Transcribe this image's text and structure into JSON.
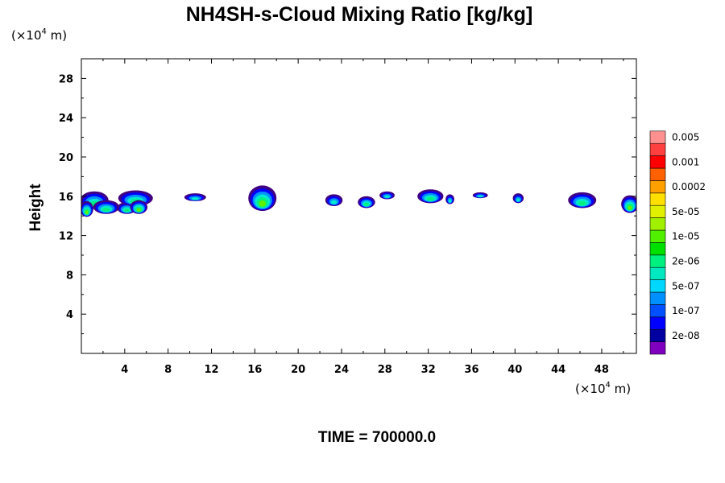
{
  "chart_data": {
    "type": "heatmap",
    "title": "NH4SH-s-Cloud Mixing Ratio [kg/kg]",
    "ylabel": "Height",
    "xunit": {
      "pre": "(×10",
      "exp": "4",
      "post": " m)"
    },
    "yunit": {
      "pre": "(×10",
      "exp": "4",
      "post": " m)"
    },
    "time_label": "TIME = 700000.0",
    "xlim": [
      0,
      51.2
    ],
    "ylim": [
      0,
      30
    ],
    "xticks": [
      4,
      8,
      12,
      16,
      20,
      24,
      28,
      32,
      36,
      40,
      44,
      48
    ],
    "yticks": [
      4,
      8,
      12,
      16,
      20,
      24,
      28
    ],
    "colorbar": {
      "colors": [
        "#7f00bf",
        "#0000a0",
        "#0000ff",
        "#0050ff",
        "#0090ff",
        "#00d8ff",
        "#00e8c0",
        "#00f080",
        "#00e000",
        "#50f000",
        "#a0f000",
        "#e0f000",
        "#ffe000",
        "#ffa000",
        "#ff6000",
        "#ff0000",
        "#ff4040",
        "#ff9090"
      ],
      "labels": [
        {
          "text": "2e-08",
          "index": 1
        },
        {
          "text": "1e-07",
          "index": 3
        },
        {
          "text": "5e-07",
          "index": 5
        },
        {
          "text": "2e-06",
          "index": 7
        },
        {
          "text": "1e-05",
          "index": 9
        },
        {
          "text": "5e-05",
          "index": 11
        },
        {
          "text": "0.0002",
          "index": 13
        },
        {
          "text": "0.001",
          "index": 15
        },
        {
          "text": "0.005",
          "index": 17
        }
      ]
    },
    "clouds": [
      {
        "x": 1.2,
        "y": 15.6,
        "rx": 1.3,
        "ry": 0.9,
        "level": 1
      },
      {
        "x": 0.5,
        "y": 14.7,
        "rx": 0.6,
        "ry": 0.8,
        "level": 2
      },
      {
        "x": 2.3,
        "y": 14.9,
        "rx": 1.2,
        "ry": 0.7,
        "level": 1
      },
      {
        "x": 4.2,
        "y": 14.8,
        "rx": 0.9,
        "ry": 0.6,
        "level": 1
      },
      {
        "x": 5.0,
        "y": 15.8,
        "rx": 1.6,
        "ry": 0.8,
        "level": 1
      },
      {
        "x": 5.3,
        "y": 14.9,
        "rx": 0.8,
        "ry": 0.7,
        "level": 2
      },
      {
        "x": 10.5,
        "y": 15.9,
        "rx": 1.0,
        "ry": 0.4,
        "level": 0
      },
      {
        "x": 16.7,
        "y": 15.8,
        "rx": 1.3,
        "ry": 1.3,
        "level": 2
      },
      {
        "x": 23.3,
        "y": 15.6,
        "rx": 0.8,
        "ry": 0.6,
        "level": 0
      },
      {
        "x": 26.3,
        "y": 15.4,
        "rx": 0.8,
        "ry": 0.6,
        "level": 1
      },
      {
        "x": 28.2,
        "y": 16.1,
        "rx": 0.7,
        "ry": 0.4,
        "level": 0
      },
      {
        "x": 32.2,
        "y": 16.0,
        "rx": 1.2,
        "ry": 0.7,
        "level": 1
      },
      {
        "x": 34.0,
        "y": 15.7,
        "rx": 0.4,
        "ry": 0.5,
        "level": 0
      },
      {
        "x": 36.8,
        "y": 16.1,
        "rx": 0.7,
        "ry": 0.3,
        "level": 0
      },
      {
        "x": 40.3,
        "y": 15.8,
        "rx": 0.5,
        "ry": 0.5,
        "level": 0
      },
      {
        "x": 46.2,
        "y": 15.6,
        "rx": 1.3,
        "ry": 0.8,
        "level": 1
      },
      {
        "x": 50.6,
        "y": 15.2,
        "rx": 0.8,
        "ry": 0.9,
        "level": 2
      }
    ]
  }
}
